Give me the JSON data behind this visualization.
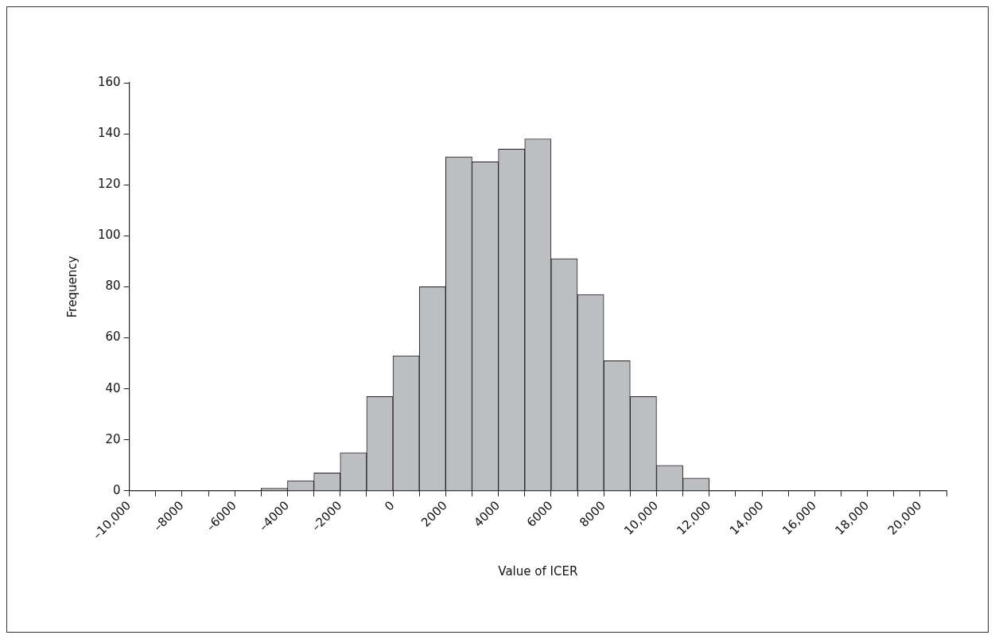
{
  "chart_data": {
    "type": "histogram",
    "xlabel": "Value of ICER",
    "ylabel": "Frequency",
    "bins": [
      -5000,
      -4000,
      -3000,
      -2000,
      -1000,
      0,
      1000,
      2000,
      3000,
      4000,
      5000,
      6000,
      7000,
      8000,
      9000,
      10000,
      11000,
      12000
    ],
    "values": [
      1,
      4,
      7,
      15,
      37,
      53,
      80,
      131,
      129,
      134,
      138,
      91,
      77,
      51,
      37,
      10,
      5
    ],
    "color": "#bdbec2",
    "xlim": [
      -10000,
      21000
    ],
    "xticks": [
      {
        "value": -10000,
        "label": "–10,000"
      },
      {
        "value": -9000,
        "label": null
      },
      {
        "value": -8000,
        "label": "–8000"
      },
      {
        "value": -7000,
        "label": null
      },
      {
        "value": -6000,
        "label": "–6000"
      },
      {
        "value": -5000,
        "label": null
      },
      {
        "value": -4000,
        "label": "–4000"
      },
      {
        "value": -3000,
        "label": null
      },
      {
        "value": -2000,
        "label": "–2000"
      },
      {
        "value": -1000,
        "label": null
      },
      0,
      {
        "value": 1000,
        "label": null
      },
      2000,
      {
        "value": 3000,
        "label": null
      },
      4000,
      {
        "value": 5000,
        "label": null
      },
      6000,
      {
        "value": 7000,
        "label": null
      },
      8000,
      {
        "value": 9000,
        "label": null
      },
      {
        "value": 10000,
        "label": "10,000"
      },
      {
        "value": 11000,
        "label": null
      },
      {
        "value": 12000,
        "label": "12,000"
      },
      {
        "value": 13000,
        "label": null
      },
      {
        "value": 14000,
        "label": "14,000"
      },
      {
        "value": 15000,
        "label": null
      },
      {
        "value": 16000,
        "label": "16,000"
      },
      {
        "value": 17000,
        "label": null
      },
      {
        "value": 18000,
        "label": "18,000"
      },
      {
        "value": 19000,
        "label": null
      },
      {
        "value": 20000,
        "label": "20,000"
      },
      {
        "value": 21000,
        "label": null
      }
    ],
    "ylim": [
      0,
      160
    ],
    "yticks": [
      0,
      20,
      40,
      60,
      80,
      100,
      120,
      140,
      160
    ],
    "grid": false,
    "legend": false
  }
}
